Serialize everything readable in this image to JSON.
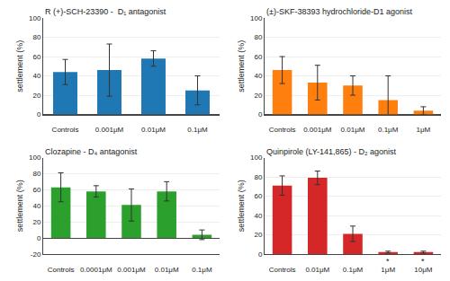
{
  "chart_data": [
    {
      "type": "bar",
      "title": "R (+)-SCH-23390 -  D₁ antagonist",
      "categories": [
        "Controls",
        "0.001μM",
        "0.01μM",
        "0.1μM"
      ],
      "values": [
        44,
        46,
        58,
        25
      ],
      "errors": [
        13,
        27,
        8,
        15
      ],
      "ylabel": "settlement (%)",
      "ylim": [
        0,
        100
      ],
      "yticks": [
        0,
        20,
        40,
        60,
        80,
        100
      ]
    },
    {
      "type": "bar",
      "title": "(±)-SKF-38393 hydrochloride-D1 agonist",
      "categories": [
        "Controls",
        "0.001μM",
        "0.01μM",
        "0.1μM",
        "1μM"
      ],
      "values": [
        46,
        33,
        30,
        15,
        4
      ],
      "errors": [
        14,
        18,
        10,
        25,
        4
      ],
      "ylabel": "settlement (%)",
      "ylim": [
        0,
        100
      ],
      "yticks": [
        0,
        20,
        40,
        60,
        80,
        100
      ]
    },
    {
      "type": "bar",
      "title": "Clozapine - D₄ antagonist",
      "categories": [
        "Controls",
        "0.0001μM",
        "0.001μM",
        "0.01μM",
        "0.1μM"
      ],
      "values": [
        63,
        58,
        41,
        58,
        4
      ],
      "errors": [
        18,
        7,
        20,
        12,
        6
      ],
      "ylabel": "settlement (%)",
      "ylim": [
        -20,
        100
      ],
      "yticks": [
        -20,
        0,
        20,
        40,
        60,
        80,
        100
      ]
    },
    {
      "type": "bar",
      "title": "Quinpirole (LY-141,865) - D₂ agonist",
      "categories": [
        "Controls",
        "0.01μM",
        "0.1μM",
        "1μM",
        "10μM"
      ],
      "values": [
        71,
        79,
        21,
        2,
        2
      ],
      "errors": [
        10,
        7,
        8,
        1,
        1
      ],
      "ylabel": "settlement (%)",
      "ylim": [
        0,
        100
      ],
      "yticks": [
        0,
        20,
        40,
        60,
        80,
        100
      ],
      "annotations": [
        {
          "x": "1μM",
          "text": "*"
        },
        {
          "x": "10μM",
          "text": "*"
        }
      ]
    }
  ]
}
